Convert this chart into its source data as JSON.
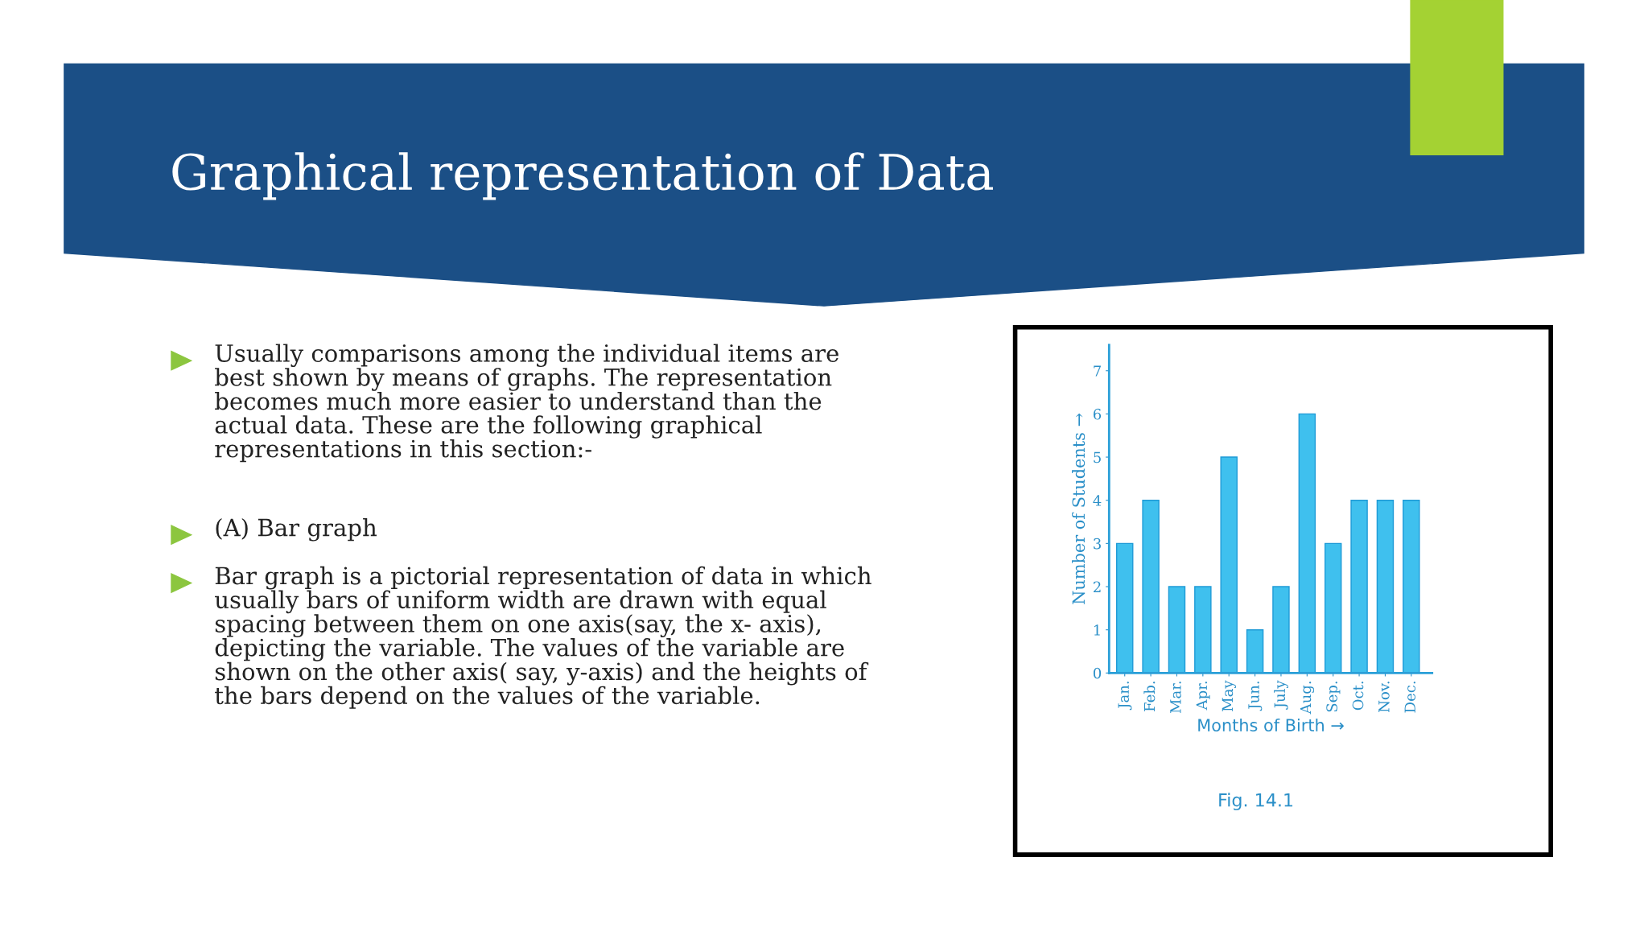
{
  "chart_data": {
    "type": "bar",
    "title": "Graphical representation of Data",
    "xlabel": "Months of Birth →",
    "ylabel": "Number of Students →",
    "categories": [
      "Jan.",
      "Feb.",
      "Mar.",
      "Apr.",
      "May",
      "Jun.",
      "July",
      "Aug.",
      "Sep.",
      "Oct.",
      "Nov.",
      "Dec."
    ],
    "values": [
      3,
      4,
      2,
      2,
      5,
      1,
      2,
      6,
      3,
      4,
      4,
      4
    ],
    "color": "#3fc0ee",
    "ylim": [
      0,
      7.6
    ],
    "yticks": [
      0,
      1,
      2,
      3,
      4,
      5,
      6,
      7
    ],
    "grid": false,
    "legend": false,
    "annotations": [
      "Usually comparisons among the individual items are\nbest shown by means of graphs. The representation\nbecomes much more easier to understand than the\nactual data. These are the following graphical\nrepresentations in this section:-",
      "(A) Bar graph",
      "Bar graph is a pictorial representation of data in which\nusually bars of uniform width are drawn with equal\nspacing between them on one axis(say, the x- axis),\ndepicting the variable. The values of the variable are\nshown on the other axis( say, y-axis) and the heights of\nthe bars depend on the values of the variable.",
      "Fig. 14.1"
    ]
  }
}
